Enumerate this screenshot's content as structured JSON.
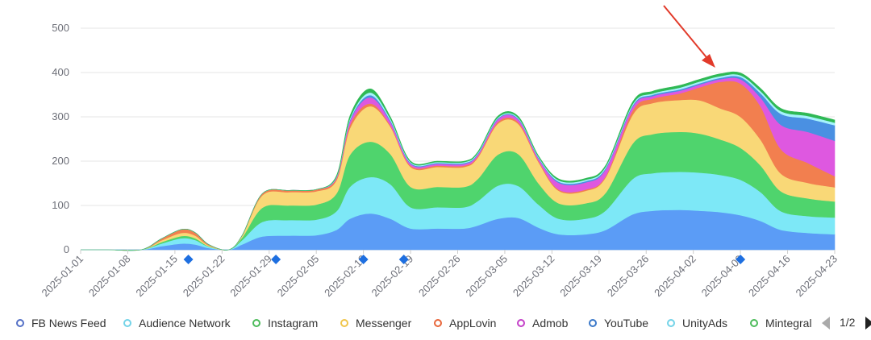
{
  "chart_data": {
    "type": "area",
    "stacked": true,
    "ylim": [
      0,
      500
    ],
    "yticks": [
      "0",
      "100",
      "200",
      "300",
      "400",
      "500"
    ],
    "x_labels": [
      "2025-01-01",
      "2025-01-08",
      "2025-01-15",
      "2025-01-22",
      "2025-01-29",
      "2025-02-05",
      "2025-02-12",
      "2025-02-19",
      "2025-02-26",
      "2025-03-05",
      "2025-03-12",
      "2025-03-19",
      "2025-03-26",
      "2025-04-02",
      "2025-04-09",
      "2025-04-16",
      "2025-04-23"
    ],
    "x_dates": [
      "2025-01-01",
      "2025-01-05",
      "2025-01-10",
      "2025-01-13",
      "2025-01-16",
      "2025-01-18",
      "2025-01-20",
      "2025-01-23",
      "2025-01-25",
      "2025-01-28",
      "2025-02-01",
      "2025-02-05",
      "2025-02-08",
      "2025-02-10",
      "2025-02-13",
      "2025-02-16",
      "2025-02-19",
      "2025-02-23",
      "2025-02-27",
      "2025-03-01",
      "2025-03-04",
      "2025-03-07",
      "2025-03-10",
      "2025-03-13",
      "2025-03-17",
      "2025-03-20",
      "2025-03-24",
      "2025-03-27",
      "2025-03-31",
      "2025-04-03",
      "2025-04-06",
      "2025-04-09",
      "2025-04-12",
      "2025-04-15",
      "2025-04-19",
      "2025-04-23"
    ],
    "series": [
      {
        "name": "FB News Feed",
        "color": "#5b9cf6",
        "values": [
          0,
          0,
          0,
          8,
          14,
          12,
          4,
          0,
          12,
          30,
          32,
          33,
          45,
          70,
          82,
          70,
          48,
          48,
          48,
          55,
          70,
          72,
          50,
          35,
          35,
          45,
          80,
          88,
          90,
          88,
          85,
          78,
          65,
          45,
          38,
          35
        ]
      },
      {
        "name": "Audience Network",
        "color": "#7de8f7",
        "values": [
          0,
          0,
          0,
          6,
          12,
          10,
          3,
          0,
          10,
          33,
          35,
          35,
          42,
          72,
          82,
          78,
          48,
          48,
          48,
          55,
          75,
          72,
          52,
          35,
          35,
          44,
          80,
          85,
          86,
          86,
          84,
          80,
          65,
          42,
          38,
          38
        ]
      },
      {
        "name": "Instagram",
        "color": "#4fd46d",
        "values": [
          0,
          0,
          0,
          3,
          5,
          4,
          1,
          0,
          6,
          32,
          33,
          34,
          40,
          72,
          80,
          68,
          46,
          46,
          46,
          50,
          70,
          72,
          48,
          35,
          35,
          40,
          80,
          88,
          90,
          88,
          80,
          72,
          60,
          45,
          40,
          36
        ]
      },
      {
        "name": "Messenger",
        "color": "#f9d877",
        "values": [
          0,
          0,
          0,
          4,
          7,
          6,
          2,
          0,
          4,
          28,
          30,
          30,
          30,
          60,
          80,
          62,
          45,
          45,
          45,
          48,
          70,
          68,
          48,
          28,
          28,
          35,
          65,
          70,
          72,
          75,
          70,
          70,
          58,
          40,
          35,
          32
        ]
      },
      {
        "name": "AppLovin",
        "color": "#f27f4f",
        "values": [
          0,
          0,
          0,
          4,
          8,
          7,
          2,
          0,
          1,
          4,
          4,
          4,
          4,
          8,
          6,
          3,
          3,
          3,
          3,
          3,
          4,
          4,
          3,
          3,
          3,
          3,
          10,
          10,
          15,
          30,
          60,
          75,
          75,
          55,
          45,
          25
        ]
      },
      {
        "name": "Admob",
        "color": "#de58e0",
        "values": [
          0,
          0,
          0,
          0,
          0,
          0,
          0,
          0,
          0,
          0,
          0,
          0,
          2,
          8,
          14,
          8,
          4,
          4,
          4,
          4,
          6,
          6,
          5,
          15,
          16,
          15,
          8,
          6,
          6,
          6,
          6,
          10,
          20,
          55,
          70,
          80
        ]
      },
      {
        "name": "YouTube",
        "color": "#4a90e2",
        "values": [
          0,
          0,
          0,
          0,
          0,
          0,
          0,
          0,
          0,
          0,
          0,
          0,
          1,
          3,
          5,
          3,
          2,
          2,
          2,
          2,
          2,
          2,
          2,
          3,
          3,
          3,
          3,
          3,
          3,
          3,
          3,
          5,
          10,
          25,
          30,
          35
        ]
      },
      {
        "name": "UnityAds",
        "color": "#a6f2fc",
        "values": [
          0,
          0,
          0,
          0,
          0,
          0,
          0,
          0,
          0,
          0,
          0,
          0,
          1,
          3,
          6,
          4,
          2,
          2,
          2,
          2,
          2,
          2,
          2,
          3,
          3,
          3,
          3,
          3,
          4,
          4,
          4,
          4,
          5,
          6,
          6,
          6
        ]
      },
      {
        "name": "Mintegral",
        "color": "#2fb955",
        "values": [
          0,
          0,
          0,
          0,
          0,
          0,
          0,
          0,
          0,
          0,
          0,
          0,
          2,
          6,
          8,
          4,
          2,
          2,
          2,
          2,
          3,
          3,
          2,
          3,
          3,
          3,
          5,
          5,
          5,
          5,
          5,
          5,
          6,
          6,
          6,
          6
        ]
      }
    ],
    "markers": [
      "2025-01-17",
      "2025-01-30",
      "2025-02-12",
      "2025-02-18",
      "2025-04-09"
    ],
    "legend_position": "bottom",
    "grid": true
  },
  "legend": {
    "items": [
      {
        "label": "FB News Feed",
        "color": "#5470c6"
      },
      {
        "label": "Audience Network",
        "color": "#73d3e8"
      },
      {
        "label": "Instagram",
        "color": "#4cbb5a"
      },
      {
        "label": "Messenger",
        "color": "#f0c54a"
      },
      {
        "label": "AppLovin",
        "color": "#e8663a"
      },
      {
        "label": "Admob",
        "color": "#c440c8"
      },
      {
        "label": "YouTube",
        "color": "#3a78c9"
      },
      {
        "label": "UnityAds",
        "color": "#73d3e8"
      },
      {
        "label": "Mintegral",
        "color": "#4cbb5a"
      }
    ],
    "page": "1/2"
  },
  "annotation": {
    "type": "arrow",
    "color": "#e23a2a"
  }
}
